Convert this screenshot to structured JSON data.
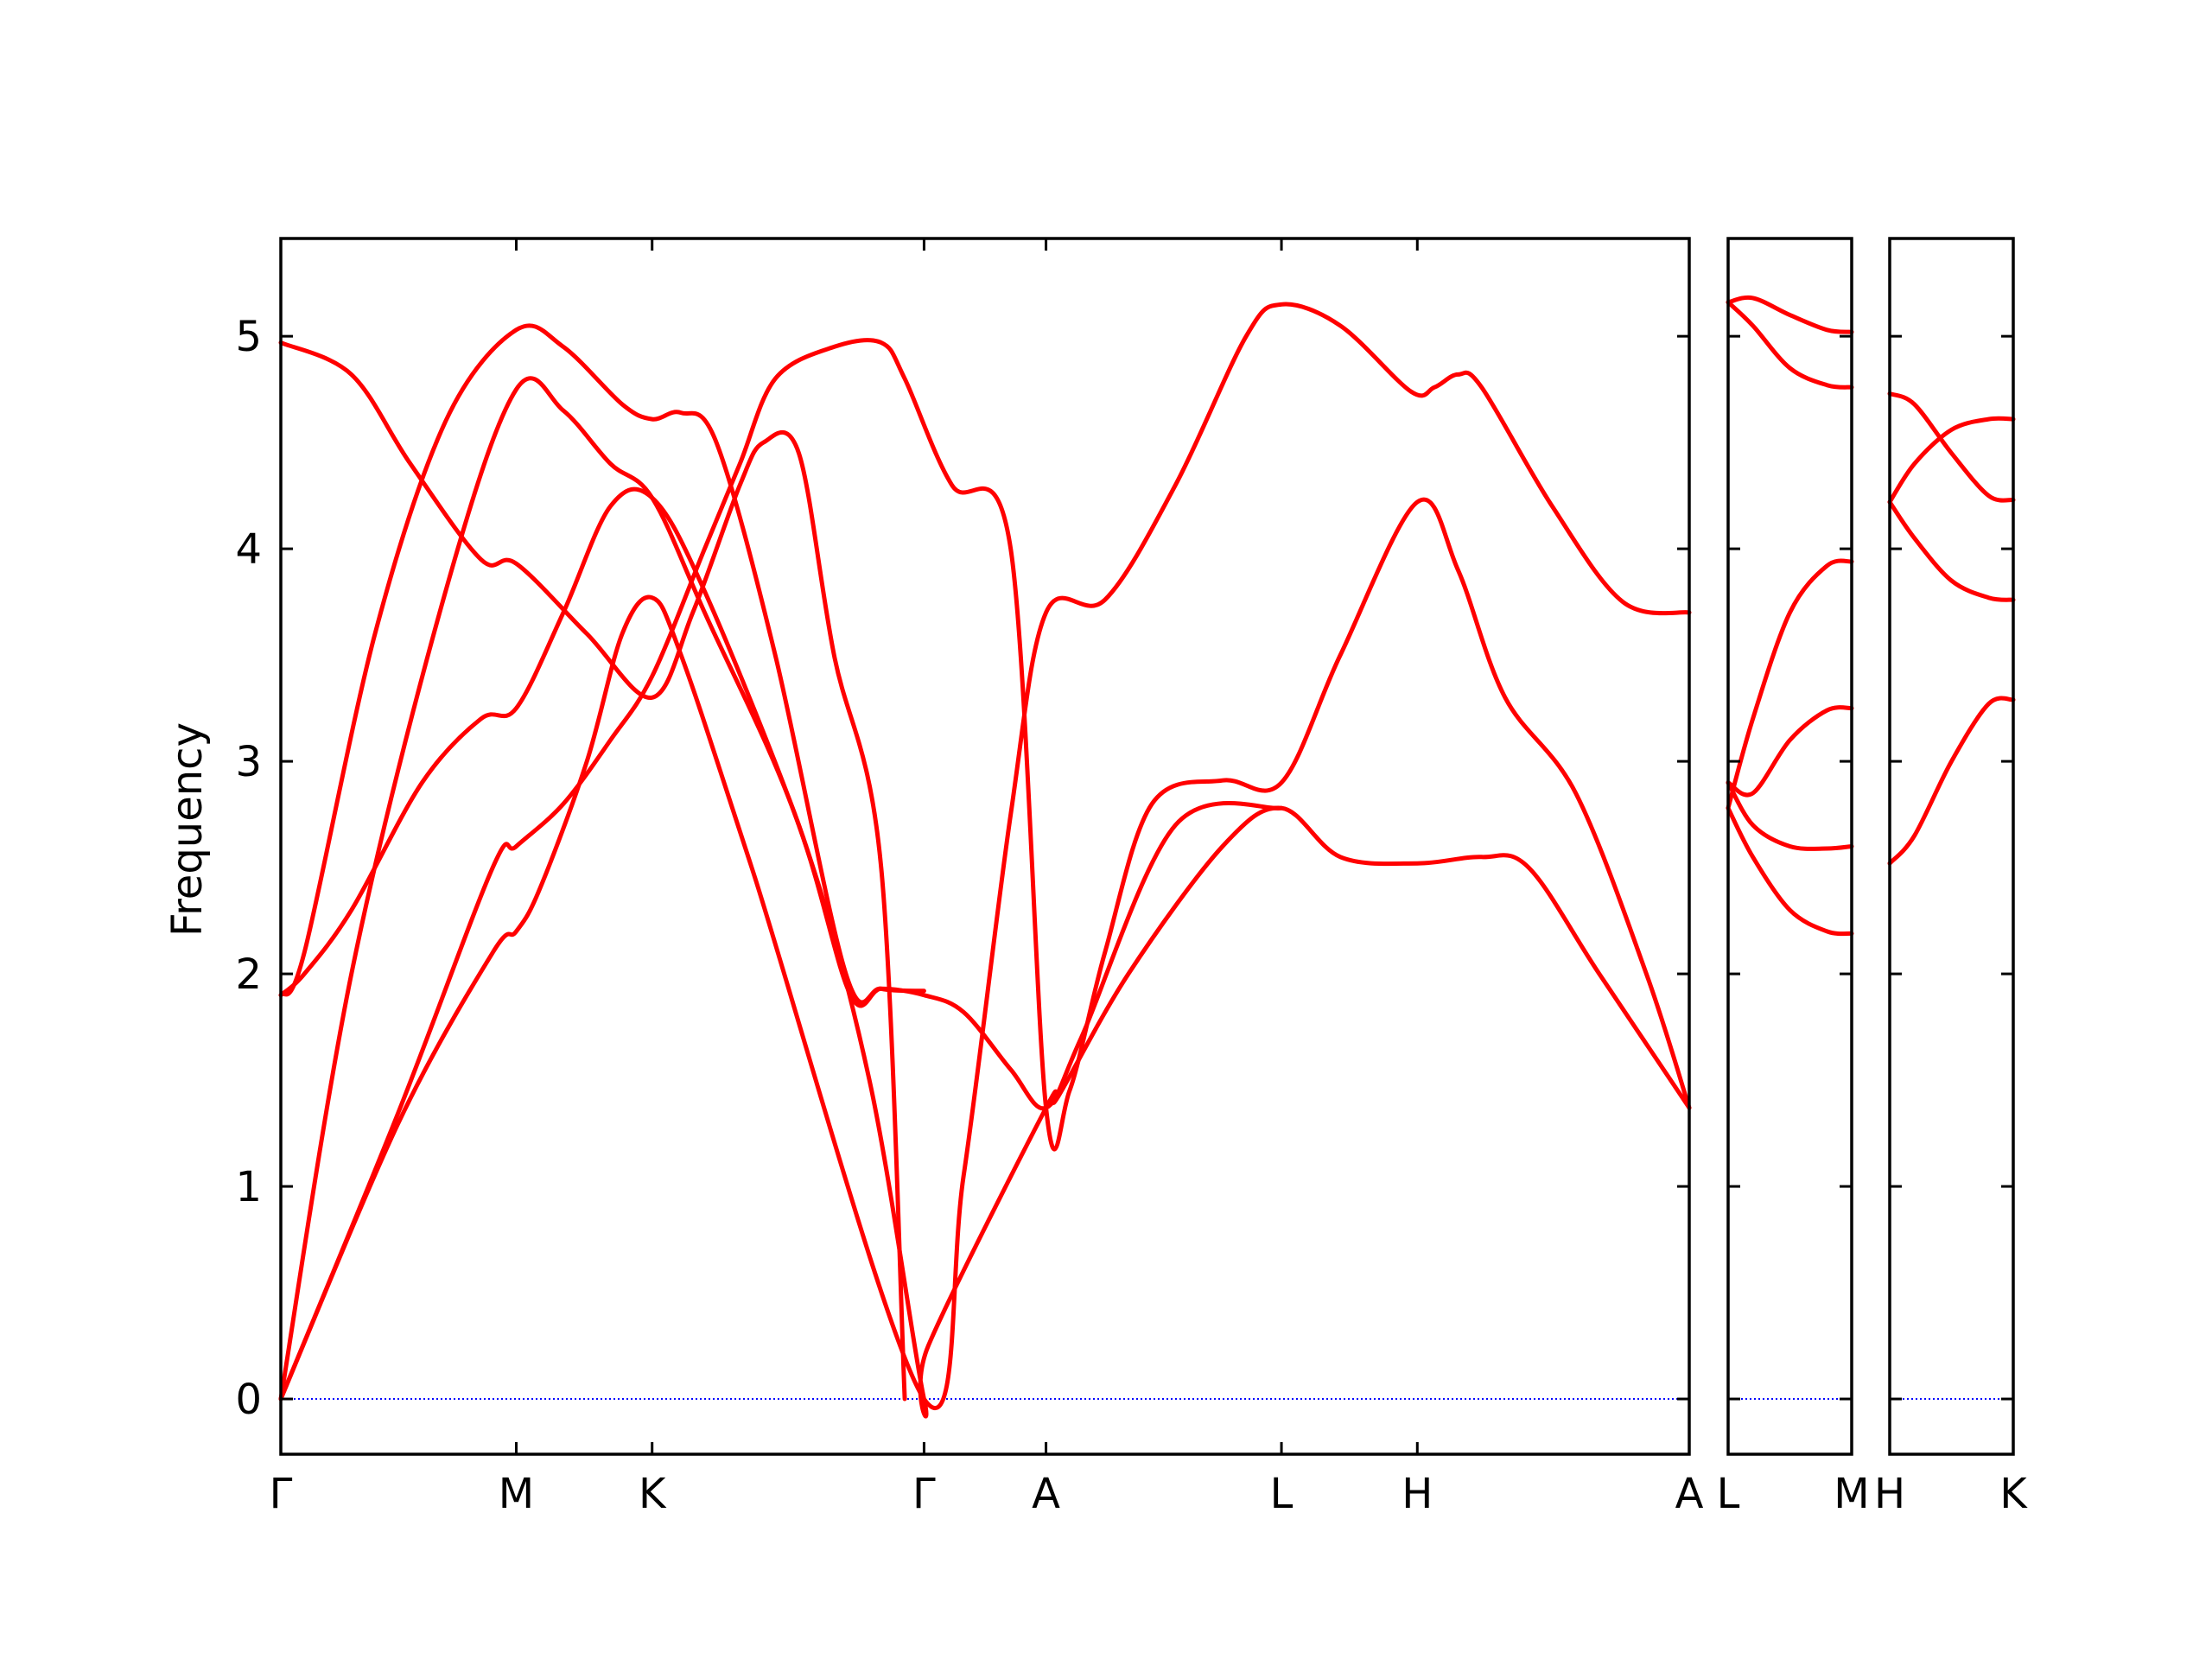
{
  "chart_data": {
    "type": "line",
    "ylabel": "Frequency",
    "xlabel": "",
    "title": "",
    "ylim": [
      -0.26,
      5.46
    ],
    "yticks": [
      0,
      1,
      2,
      3,
      4,
      5
    ],
    "grid": false,
    "legend": "none",
    "series_color": "#ff0000",
    "zero_line_color": "#0000ff",
    "panels": [
      {
        "name": "Γ-M-K-Γ-A-L-H-A",
        "kpoints": [
          {
            "label": "Γ",
            "x": 0.0
          },
          {
            "label": "M",
            "x": 1.0
          },
          {
            "label": "K",
            "x": 1.577
          },
          {
            "label": "Γ",
            "x": 2.732
          },
          {
            "label": "A",
            "x": 3.25
          },
          {
            "label": "L",
            "x": 4.25
          },
          {
            "label": "H",
            "x": 4.827
          },
          {
            "label": "A",
            "x": 5.982
          }
        ],
        "bands": [
          [
            [
              0,
              0
            ],
            [
              0.5,
              1.3
            ],
            [
              0.9,
              2.1
            ],
            [
              1.0,
              2.2
            ],
            [
              1.1,
              2.4
            ],
            [
              1.3,
              3.0
            ],
            [
              1.45,
              3.6
            ],
            [
              1.577,
              3.77
            ],
            [
              1.7,
              3.5
            ],
            [
              2.0,
              2.5
            ],
            [
              2.732,
              0
            ],
            [
              2.9,
              1.05
            ],
            [
              3.1,
              2.75
            ],
            [
              3.25,
              3.7
            ],
            [
              3.5,
              3.76
            ],
            [
              3.8,
              4.3
            ],
            [
              4.1,
              5.0
            ],
            [
              4.25,
              5.15
            ],
            [
              4.5,
              5.05
            ],
            [
              4.8,
              4.74
            ],
            [
              4.9,
              4.76
            ],
            [
              5.0,
              4.82
            ],
            [
              5.1,
              4.76
            ],
            [
              5.4,
              4.2
            ],
            [
              5.7,
              3.75
            ],
            [
              5.982,
              3.7
            ]
          ],
          [
            [
              0,
              0
            ],
            [
              0.5,
              1.35
            ],
            [
              0.9,
              2.5
            ],
            [
              1.0,
              2.6
            ],
            [
              1.2,
              2.8
            ],
            [
              1.4,
              3.1
            ],
            [
              1.577,
              3.4
            ],
            [
              1.8,
              4.0
            ],
            [
              1.95,
              4.4
            ],
            [
              2.1,
              4.8
            ],
            [
              2.35,
              4.95
            ],
            [
              2.55,
              4.97
            ],
            [
              2.65,
              4.8
            ],
            [
              2.85,
              4.3
            ],
            [
              3.1,
              4.0
            ],
            [
              3.25,
              1.37
            ],
            [
              3.35,
              1.45
            ],
            [
              3.5,
              2.1
            ],
            [
              3.7,
              2.8
            ],
            [
              4.0,
              2.91
            ],
            [
              4.25,
              2.9
            ],
            [
              4.5,
              3.5
            ],
            [
              4.827,
              4.22
            ],
            [
              5.0,
              3.9
            ],
            [
              5.2,
              3.3
            ],
            [
              5.5,
              2.85
            ],
            [
              5.8,
              2.0
            ],
            [
              5.982,
              1.37
            ]
          ],
          [
            [
              0,
              0
            ],
            [
              0.3,
              2.0
            ],
            [
              0.7,
              3.8
            ],
            [
              1.0,
              4.75
            ],
            [
              1.2,
              4.65
            ],
            [
              1.4,
              4.4
            ],
            [
              1.577,
              4.24
            ],
            [
              1.8,
              3.7
            ],
            [
              2.2,
              2.7
            ],
            [
              2.5,
              1.5
            ],
            [
              2.732,
              0
            ],
            [
              2.75,
              0.25
            ],
            [
              3.25,
              1.37
            ],
            [
              3.3,
              1.42
            ],
            [
              3.6,
              2.0
            ],
            [
              4.0,
              2.6
            ],
            [
              4.25,
              2.78
            ],
            [
              4.5,
              2.55
            ],
            [
              4.827,
              2.52
            ],
            [
              5.1,
              2.55
            ],
            [
              5.3,
              2.5
            ],
            [
              5.6,
              2.0
            ],
            [
              5.982,
              1.37
            ]
          ],
          [
            [
              0,
              1.9
            ],
            [
              0.1,
              2.0
            ],
            [
              0.3,
              2.3
            ],
            [
              0.6,
              2.9
            ],
            [
              0.85,
              3.2
            ],
            [
              1.0,
              3.25
            ],
            [
              1.2,
              3.7
            ],
            [
              1.4,
              4.2
            ],
            [
              1.577,
              4.24
            ],
            [
              1.8,
              3.8
            ],
            [
              2.2,
              2.7
            ],
            [
              2.42,
              1.9
            ],
            [
              2.55,
              1.93
            ],
            [
              2.732,
              1.9
            ],
            [
              2.9,
              1.82
            ],
            [
              3.1,
              1.55
            ],
            [
              3.25,
              1.37
            ],
            [
              3.4,
              1.7
            ],
            [
              3.8,
              2.7
            ],
            [
              4.25,
              2.78
            ]
          ],
          [
            [
              0,
              1.9
            ],
            [
              0.1,
              2.1
            ],
            [
              0.4,
              3.6
            ],
            [
              0.7,
              4.6
            ],
            [
              1.0,
              5.03
            ],
            [
              1.2,
              4.95
            ],
            [
              1.45,
              4.68
            ],
            [
              1.577,
              4.61
            ],
            [
              1.7,
              4.64
            ],
            [
              1.85,
              4.5
            ],
            [
              2.1,
              3.5
            ],
            [
              2.4,
              2.0
            ],
            [
              2.55,
              1.93
            ],
            [
              2.732,
              1.92
            ]
          ],
          [
            [
              0,
              4.97
            ],
            [
              0.3,
              4.82
            ],
            [
              0.55,
              4.4
            ],
            [
              0.85,
              3.95
            ],
            [
              1.0,
              3.93
            ],
            [
              1.3,
              3.6
            ],
            [
              1.577,
              3.3
            ],
            [
              1.75,
              3.7
            ],
            [
              1.95,
              4.3
            ],
            [
              2.05,
              4.5
            ],
            [
              2.2,
              4.45
            ],
            [
              2.35,
              3.5
            ],
            [
              2.55,
              2.5
            ],
            [
              2.65,
              0
            ]
          ]
        ]
      },
      {
        "name": "L-M",
        "kpoints": [
          {
            "label": "L",
            "x": 0.0
          },
          {
            "label": "M",
            "x": 1.0
          }
        ],
        "bands": [
          [
            [
              0,
              5.16
            ],
            [
              0.2,
              5.18
            ],
            [
              0.5,
              5.1
            ],
            [
              0.8,
              5.03
            ],
            [
              1.0,
              5.02
            ]
          ],
          [
            [
              0,
              5.16
            ],
            [
              0.2,
              5.05
            ],
            [
              0.5,
              4.85
            ],
            [
              0.8,
              4.77
            ],
            [
              1.0,
              4.76
            ]
          ],
          [
            [
              0,
              2.78
            ],
            [
              0.2,
              3.2
            ],
            [
              0.5,
              3.7
            ],
            [
              0.8,
              3.92
            ],
            [
              1.0,
              3.94
            ]
          ],
          [
            [
              0,
              2.9
            ],
            [
              0.2,
              2.85
            ],
            [
              0.5,
              3.1
            ],
            [
              0.8,
              3.24
            ],
            [
              1.0,
              3.25
            ]
          ],
          [
            [
              0,
              2.9
            ],
            [
              0.2,
              2.7
            ],
            [
              0.5,
              2.6
            ],
            [
              0.8,
              2.59
            ],
            [
              1.0,
              2.6
            ]
          ],
          [
            [
              0,
              2.78
            ],
            [
              0.2,
              2.55
            ],
            [
              0.5,
              2.3
            ],
            [
              0.8,
              2.2
            ],
            [
              1.0,
              2.19
            ]
          ]
        ]
      },
      {
        "name": "H-K",
        "kpoints": [
          {
            "label": "H",
            "x": 0.0
          },
          {
            "label": "K",
            "x": 1.0
          }
        ],
        "bands": [
          [
            [
              0,
              4.73
            ],
            [
              0.2,
              4.68
            ],
            [
              0.5,
              4.45
            ],
            [
              0.8,
              4.25
            ],
            [
              1.0,
              4.23
            ]
          ],
          [
            [
              0,
              4.22
            ],
            [
              0.2,
              4.4
            ],
            [
              0.5,
              4.56
            ],
            [
              0.8,
              4.61
            ],
            [
              1.0,
              4.61
            ]
          ],
          [
            [
              0,
              4.22
            ],
            [
              0.2,
              4.05
            ],
            [
              0.5,
              3.85
            ],
            [
              0.8,
              3.77
            ],
            [
              1.0,
              3.76
            ]
          ],
          [
            [
              0,
              2.52
            ],
            [
              0.2,
              2.65
            ],
            [
              0.5,
              3.0
            ],
            [
              0.8,
              3.27
            ],
            [
              1.0,
              3.29
            ]
          ]
        ]
      }
    ]
  }
}
